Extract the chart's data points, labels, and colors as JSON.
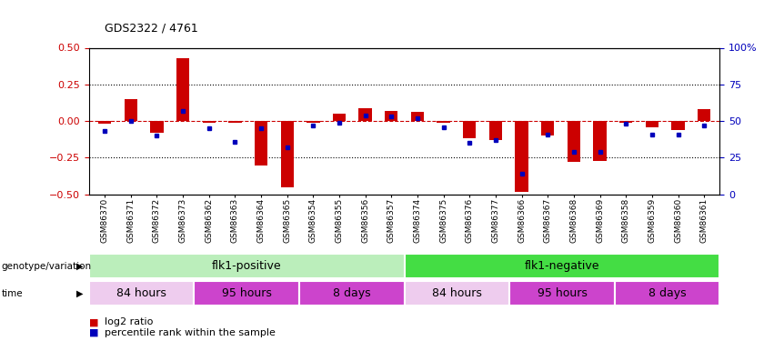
{
  "title": "GDS2322 / 4761",
  "samples": [
    "GSM86370",
    "GSM86371",
    "GSM86372",
    "GSM86373",
    "GSM86362",
    "GSM86363",
    "GSM86364",
    "GSM86365",
    "GSM86354",
    "GSM86355",
    "GSM86356",
    "GSM86357",
    "GSM86374",
    "GSM86375",
    "GSM86376",
    "GSM86377",
    "GSM86366",
    "GSM86367",
    "GSM86368",
    "GSM86369",
    "GSM86358",
    "GSM86359",
    "GSM86360",
    "GSM86361"
  ],
  "log2_ratio": [
    -0.02,
    0.15,
    -0.08,
    0.43,
    -0.01,
    -0.01,
    -0.3,
    -0.45,
    -0.01,
    0.05,
    0.09,
    0.07,
    0.06,
    -0.01,
    -0.12,
    -0.13,
    -0.48,
    -0.1,
    -0.28,
    -0.27,
    -0.01,
    -0.04,
    -0.06,
    0.08
  ],
  "percentile": [
    43,
    50,
    40,
    57,
    45,
    36,
    45,
    32,
    47,
    49,
    54,
    53,
    52,
    46,
    35,
    37,
    14,
    41,
    29,
    29,
    48,
    41,
    41,
    47
  ],
  "bar_color": "#cc0000",
  "dot_color": "#0000bb",
  "ylim": [
    -0.5,
    0.5
  ],
  "yticks_left": [
    -0.5,
    -0.25,
    0,
    0.25,
    0.5
  ],
  "yticks_right": [
    0,
    25,
    50,
    75,
    100
  ],
  "ytick_labels_right": [
    "0",
    "25",
    "50",
    "75",
    "100%"
  ],
  "hlines": [
    0.25,
    -0.25
  ],
  "zero_line_color": "#cc0000",
  "hline_color": "black",
  "genotype_groups": [
    {
      "label": "flk1-positive",
      "start": 0,
      "end": 12,
      "color": "#bbeebb"
    },
    {
      "label": "flk1-negative",
      "start": 12,
      "end": 24,
      "color": "#44dd44"
    }
  ],
  "time_groups": [
    {
      "label": "84 hours",
      "start": 0,
      "end": 4,
      "color": "#eeccee"
    },
    {
      "label": "95 hours",
      "start": 4,
      "end": 8,
      "color": "#cc44cc"
    },
    {
      "label": "8 days",
      "start": 8,
      "end": 12,
      "color": "#cc44cc"
    },
    {
      "label": "84 hours",
      "start": 12,
      "end": 16,
      "color": "#eeccee"
    },
    {
      "label": "95 hours",
      "start": 16,
      "end": 20,
      "color": "#cc44cc"
    },
    {
      "label": "8 days",
      "start": 20,
      "end": 24,
      "color": "#cc44cc"
    }
  ],
  "genotype_label": "genotype/variation",
  "time_label": "time",
  "legend_items": [
    {
      "label": "log2 ratio",
      "color": "#cc0000"
    },
    {
      "label": "percentile rank within the sample",
      "color": "#0000bb"
    }
  ],
  "bg_color": "#ffffff",
  "plot_bg": "#ffffff",
  "tick_label_color_left": "#cc0000",
  "tick_label_color_right": "#0000bb"
}
